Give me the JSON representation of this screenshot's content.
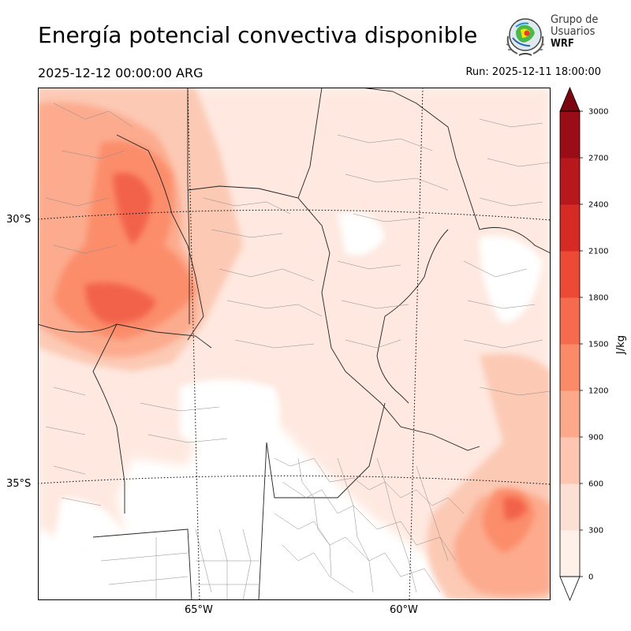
{
  "header": {
    "title": "Energía potencial convectiva disponible",
    "valid_time": "2025-12-12 00:00:00 ARG",
    "run_time": "Run: 2025-12-11 18:00:00"
  },
  "logo": {
    "line1": "Grupo de",
    "line2": "Usuarios",
    "line3": "WRF"
  },
  "map": {
    "lat_labels": [
      "30°S",
      "35°S"
    ],
    "lon_labels": [
      "65°W",
      "60°W"
    ],
    "gridline_style": "dotted",
    "colors": [
      "#fff5f0",
      "#fee0d2",
      "#fcbba1",
      "#fc9272",
      "#fb6a4a",
      "#ef3b2c",
      "#cb181d",
      "#a50f15",
      "#67000d"
    ]
  },
  "colorbar": {
    "unit_label": "J/kg",
    "ticks": [
      "0",
      "300",
      "600",
      "900",
      "1200",
      "1500",
      "1800",
      "2100",
      "2400",
      "2700",
      "3000"
    ],
    "colors": [
      "#fff0ea",
      "#fde0d4",
      "#fcc6b0",
      "#fca88a",
      "#fb8a68",
      "#f66b4d",
      "#ec4a35",
      "#d62a24",
      "#b8181c",
      "#9a0d16",
      "#7a0610"
    ],
    "extend": "both"
  }
}
